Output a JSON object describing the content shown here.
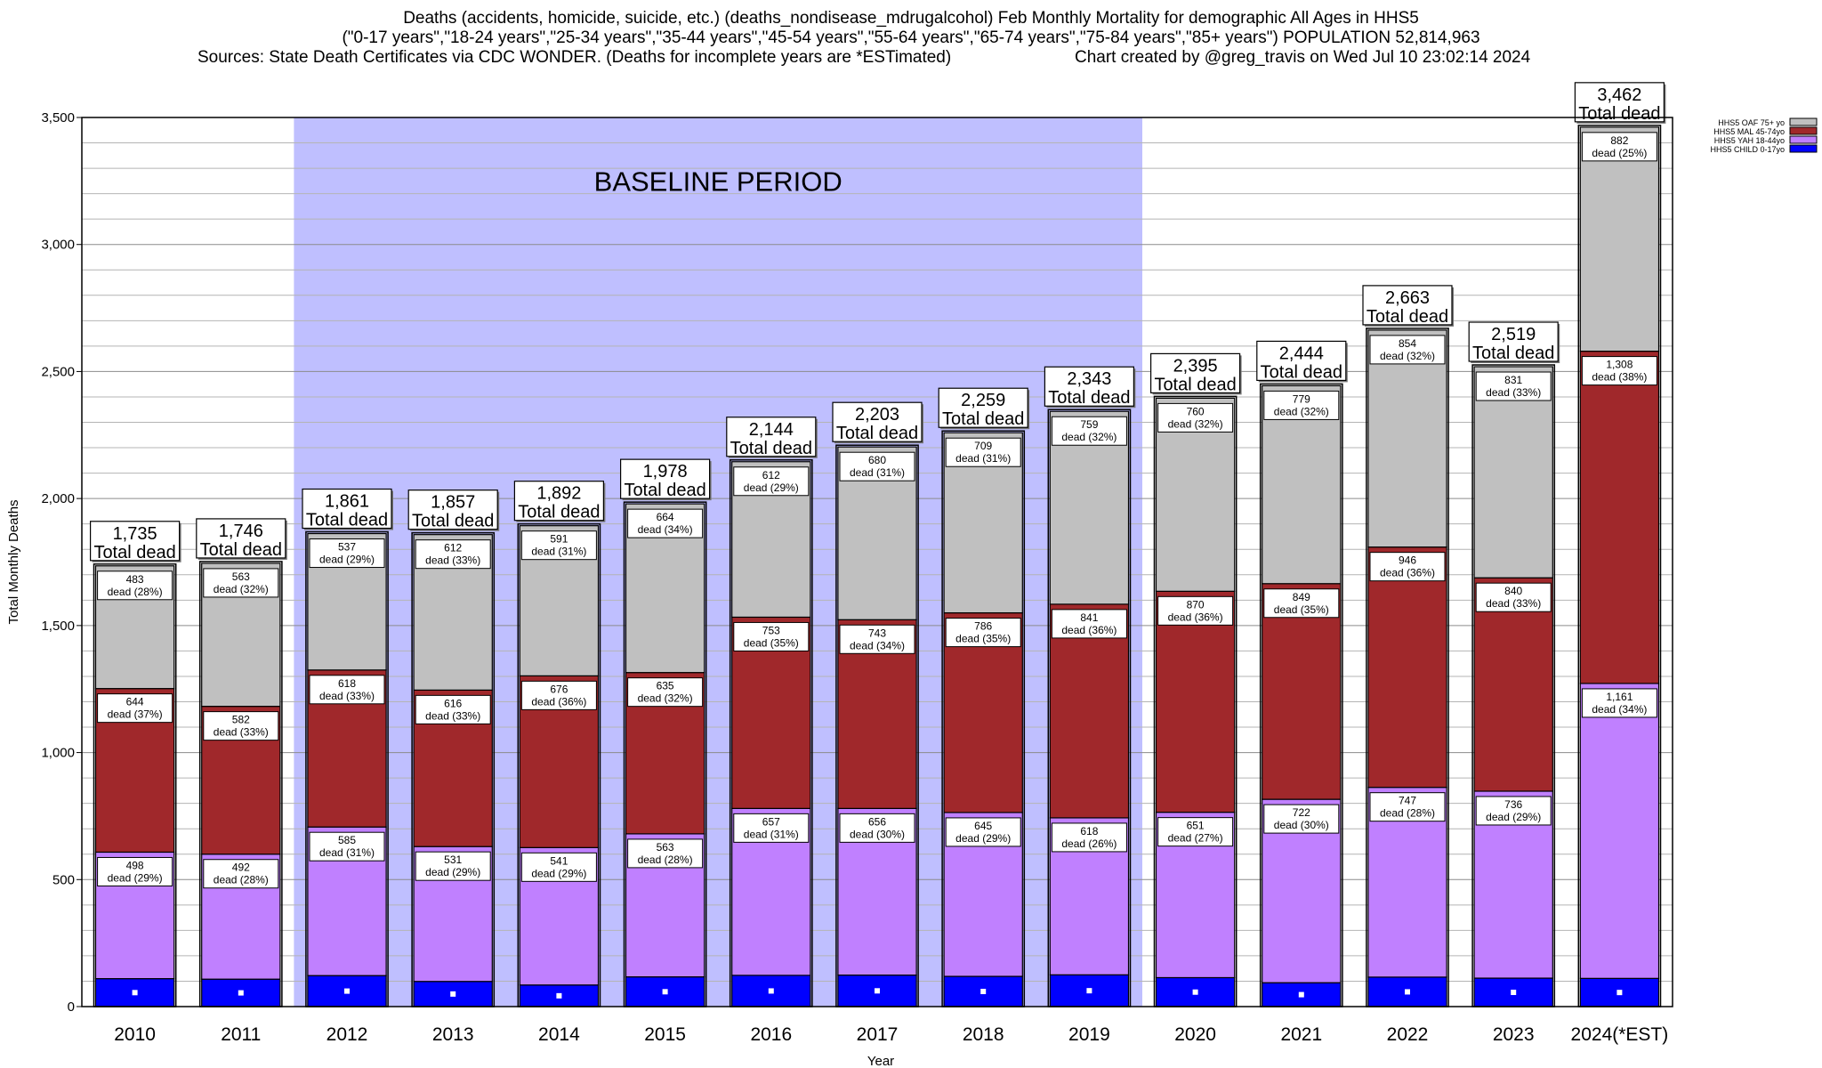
{
  "header": {
    "title_line1": "Deaths (accidents, homicide, suicide, etc.) (deaths_nondisease_mdrugalcohol) Feb Monthly Mortality for demographic All Ages in HHS5",
    "title_line2": "(\"0-17 years\",\"18-24 years\",\"25-34 years\",\"35-44 years\",\"45-54 years\",\"55-64 years\",\"65-74 years\",\"75-84 years\",\"85+ years\") POPULATION 52,814,963",
    "title_line3_left": "Sources: State Death Certificates via CDC WONDER. (Deaths for incomplete years are *ESTimated)",
    "title_line3_right": "Chart created by @greg_travis on Wed Jul 10 23:02:14 2024"
  },
  "chart_data": {
    "type": "bar",
    "stacked": true,
    "xlabel": "Year",
    "ylabel": "Total Monthly Deaths",
    "ylim": [
      0,
      3500
    ],
    "yticks": [
      0,
      500,
      1000,
      1500,
      2000,
      2500,
      3000,
      3500
    ],
    "ytick_labels": [
      "0",
      "500",
      "1,000",
      "1,500",
      "2,000",
      "2,500",
      "3,000",
      "3,500"
    ],
    "grid": true,
    "legend_position": "top-right",
    "categories": [
      "2010",
      "2011",
      "2012",
      "2013",
      "2014",
      "2015",
      "2016",
      "2017",
      "2018",
      "2019",
      "2020",
      "2021",
      "2022",
      "2023",
      "2024(*EST)"
    ],
    "baseline_period": {
      "label": "BASELINE PERIOD",
      "start": "2012",
      "end": "2019",
      "color": "#bfbfff"
    },
    "series": [
      {
        "name": "HHS5 CHILD 0-17yo",
        "color": "#0000ff",
        "values": [
          110,
          108,
          122,
          99,
          85,
          117,
          123,
          124,
          119,
          125,
          114,
          94,
          116,
          112,
          111
        ],
        "labels": []
      },
      {
        "name": "HHS5 YAH 18-44yo",
        "color": "#c080ff",
        "values": [
          498,
          492,
          585,
          531,
          541,
          563,
          657,
          656,
          645,
          618,
          651,
          722,
          747,
          736,
          1161
        ],
        "labels": [
          "498",
          "492",
          "585",
          "531",
          "541",
          "563",
          "657",
          "656",
          "645",
          "618",
          "651",
          "722",
          "747",
          "736",
          "1,161"
        ],
        "pct_labels": [
          "dead (29%)",
          "dead (28%)",
          "dead (31%)",
          "dead (29%)",
          "dead (29%)",
          "dead (28%)",
          "dead (31%)",
          "dead (30%)",
          "dead (29%)",
          "dead (26%)",
          "dead (27%)",
          "dead (30%)",
          "dead (28%)",
          "dead (29%)",
          "dead (34%)"
        ]
      },
      {
        "name": "HHS5 MAL 45-74yo",
        "color": "#a0282b",
        "values": [
          644,
          582,
          618,
          616,
          676,
          635,
          753,
          743,
          786,
          841,
          870,
          849,
          946,
          840,
          1308
        ],
        "labels": [
          "644",
          "582",
          "618",
          "616",
          "676",
          "635",
          "753",
          "743",
          "786",
          "841",
          "870",
          "849",
          "946",
          "840",
          "1,308"
        ],
        "pct_labels": [
          "dead (37%)",
          "dead (33%)",
          "dead (33%)",
          "dead (33%)",
          "dead (36%)",
          "dead (32%)",
          "dead (35%)",
          "dead (34%)",
          "dead (35%)",
          "dead (36%)",
          "dead (36%)",
          "dead (35%)",
          "dead (36%)",
          "dead (33%)",
          "dead (38%)"
        ]
      },
      {
        "name": "HHS5 OAF 75+ yo",
        "color": "#c0c0c0",
        "values": [
          483,
          563,
          537,
          612,
          591,
          664,
          612,
          680,
          709,
          759,
          760,
          779,
          854,
          831,
          882
        ],
        "labels": [
          "483",
          "563",
          "537",
          "612",
          "591",
          "664",
          "612",
          "680",
          "709",
          "759",
          "760",
          "779",
          "854",
          "831",
          "882"
        ],
        "pct_labels": [
          "dead (28%)",
          "dead (32%)",
          "dead (29%)",
          "dead (33%)",
          "dead (31%)",
          "dead (34%)",
          "dead (29%)",
          "dead (31%)",
          "dead (31%)",
          "dead (32%)",
          "dead (32%)",
          "dead (32%)",
          "dead (32%)",
          "dead (33%)",
          "dead (25%)"
        ]
      }
    ],
    "totals": [
      1735,
      1746,
      1861,
      1857,
      1892,
      1978,
      2144,
      2203,
      2259,
      2343,
      2395,
      2444,
      2663,
      2519,
      3462
    ],
    "total_labels": [
      "1,735",
      "1,746",
      "1,861",
      "1,857",
      "1,892",
      "1,978",
      "2,144",
      "2,203",
      "2,259",
      "2,343",
      "2,395",
      "2,444",
      "2,663",
      "2,519",
      "3,462"
    ],
    "total_suffix": "Total dead",
    "legend_order": [
      "HHS5 OAF 75+ yo",
      "HHS5 MAL 45-74yo",
      "HHS5 YAH 18-44yo",
      "HHS5 CHILD 0-17yo"
    ]
  }
}
